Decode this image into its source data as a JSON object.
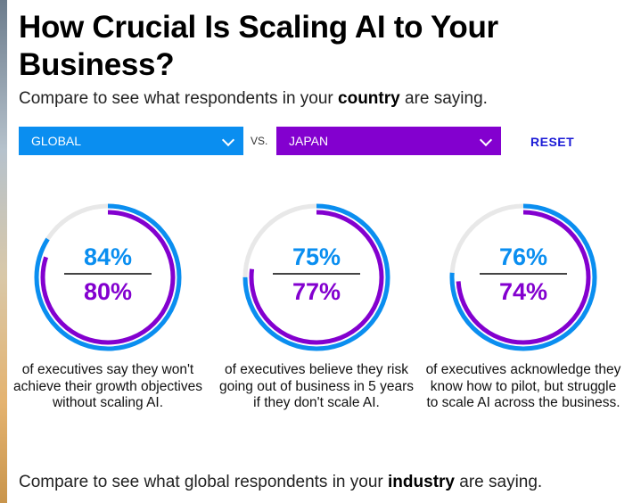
{
  "header": {
    "title": "How Crucial Is Scaling AI to Your Business?",
    "subtitle_before": "Compare to see what respondents in your ",
    "subtitle_bold": "country",
    "subtitle_after": " are saying."
  },
  "controls": {
    "left_select": "GLOBAL",
    "vs_label": "VS.",
    "right_select": "JAPAN",
    "reset_label": "RESET"
  },
  "colors": {
    "global": "#0a8ef0",
    "japan": "#8300cf",
    "track": "#e8e8e8"
  },
  "stats": [
    {
      "global_value": 84,
      "global_label": "84%",
      "japan_value": 80,
      "japan_label": "80%",
      "description": "of executives say they won't achieve their growth objectives without scaling AI."
    },
    {
      "global_value": 75,
      "global_label": "75%",
      "japan_value": 77,
      "japan_label": "77%",
      "description": "of executives believe they risk going out of business in 5 years if they don't scale AI."
    },
    {
      "global_value": 76,
      "global_label": "76%",
      "japan_value": 74,
      "japan_label": "74%",
      "description": "of executives acknowledge they know how to pilot, but struggle to scale AI across the business."
    }
  ],
  "footer": {
    "before": "Compare to see what global respondents in your ",
    "bold": "industry",
    "after": " are saying."
  }
}
